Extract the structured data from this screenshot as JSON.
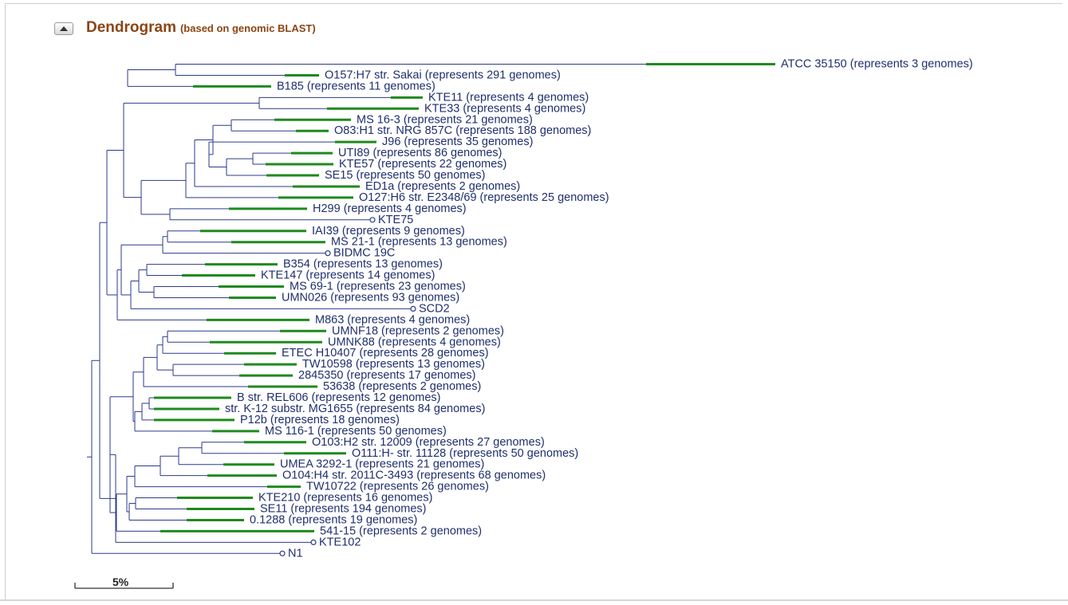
{
  "header": {
    "title": "Dendrogram",
    "subtitle": "(based on genomic BLAST)"
  },
  "scale_bar": {
    "label": "5%"
  },
  "colors": {
    "branch": "#2b3a8c",
    "highlight": "#1e8a1e",
    "label": "#1f2f6e",
    "title": "#8b4513"
  },
  "leaves": [
    {
      "label": "ATCC 35150 (represents 3 genomes)"
    },
    {
      "label": "O157:H7 str. Sakai (represents 291 genomes)"
    },
    {
      "label": "B185 (represents 11 genomes)"
    },
    {
      "label": "KTE11 (represents 4 genomes)"
    },
    {
      "label": "KTE33 (represents 4 genomes)"
    },
    {
      "label": "MS 16-3 (represents 21 genomes)"
    },
    {
      "label": "O83:H1 str. NRG 857C (represents 188 genomes)"
    },
    {
      "label": "J96 (represents 35 genomes)"
    },
    {
      "label": "UTI89 (represents 86 genomes)"
    },
    {
      "label": "KTE57 (represents 22 genomes)"
    },
    {
      "label": "SE15 (represents 50 genomes)"
    },
    {
      "label": "ED1a (represents 2 genomes)"
    },
    {
      "label": "O127:H6 str. E2348/69 (represents 25 genomes)"
    },
    {
      "label": "H299 (represents 4 genomes)"
    },
    {
      "label": "KTE75"
    },
    {
      "label": "IAI39 (represents 9 genomes)"
    },
    {
      "label": "MS 21-1 (represents 13 genomes)"
    },
    {
      "label": "BIDMC 19C"
    },
    {
      "label": "B354 (represents 13 genomes)"
    },
    {
      "label": "KTE147 (represents 14 genomes)"
    },
    {
      "label": "MS 69-1 (represents 23 genomes)"
    },
    {
      "label": "UMN026 (represents 93 genomes)"
    },
    {
      "label": "SCD2"
    },
    {
      "label": "M863 (represents 4 genomes)"
    },
    {
      "label": "UMNF18 (represents 2 genomes)"
    },
    {
      "label": "UMNK88 (represents 4 genomes)"
    },
    {
      "label": "ETEC H10407 (represents 28 genomes)"
    },
    {
      "label": "TW10598 (represents 13 genomes)"
    },
    {
      "label": "2845350 (represents 17 genomes)"
    },
    {
      "label": "53638 (represents 2 genomes)"
    },
    {
      "label": "B str. REL606 (represents 12 genomes)"
    },
    {
      "label": "str. K-12 substr. MG1655 (represents 84 genomes)"
    },
    {
      "label": "P12b (represents 18 genomes)"
    },
    {
      "label": "MS 116-1 (represents 50 genomes)"
    },
    {
      "label": "O103:H2 str. 12009 (represents 27 genomes)"
    },
    {
      "label": "O111:H- str. 11128 (represents 50 genomes)"
    },
    {
      "label": "UMEA 3292-1 (represents 21 genomes)"
    },
    {
      "label": "O104:H4 str. 2011C-3493 (represents 68 genomes)"
    },
    {
      "label": "TW10722 (represents 26 genomes)"
    },
    {
      "label": "KTE210 (represents 16 genomes)"
    },
    {
      "label": "SE11 (represents 194 genomes)"
    },
    {
      "label": "0.1288 (represents 19 genomes)"
    },
    {
      "label": "541-15 (represents 2 genomes)"
    },
    {
      "label": "KTE102"
    },
    {
      "label": "N1"
    }
  ]
}
